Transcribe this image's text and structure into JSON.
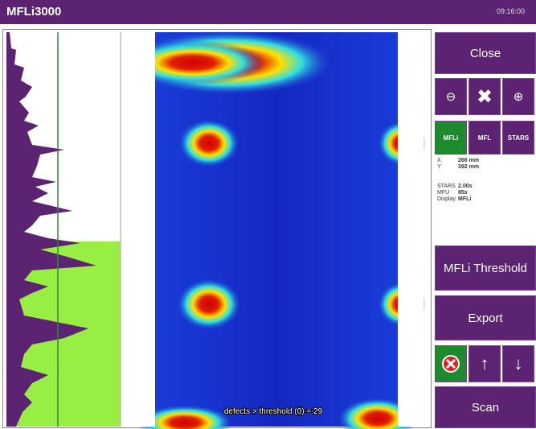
{
  "header": {
    "title": "MFLi3000",
    "time": "09:16:00"
  },
  "scan_view": {
    "overlay": "defects > threshold (0) = 29"
  },
  "sidebar": {
    "close": "Close",
    "modes": [
      "MFLi",
      "MFL",
      "STARS"
    ],
    "position": [
      [
        "X",
        "266 mm"
      ],
      [
        "Y",
        "392 mm"
      ]
    ],
    "settings": [
      [
        "STARS",
        "2.00s"
      ],
      [
        "MFU",
        "85s"
      ],
      [
        "Display",
        "MFLi"
      ]
    ],
    "threshold": "MFLi Threshold",
    "export": "Export",
    "scan": "Scan"
  }
}
